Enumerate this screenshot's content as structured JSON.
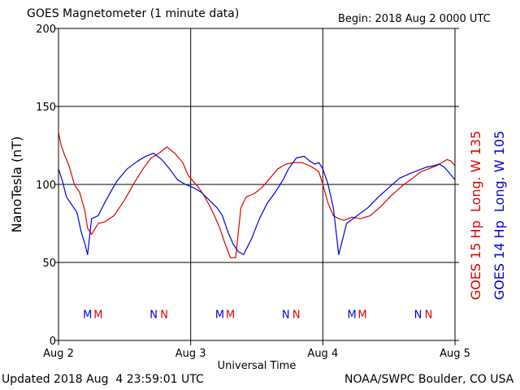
{
  "header": {
    "title": "GOES Magnetometer (1 minute data)",
    "begin": "Begin:  2018 Aug 2 0000 UTC"
  },
  "footer": {
    "updated": "Updated 2018 Aug  4 23:59:01 UTC",
    "credit": "NOAA/SWPC Boulder, CO USA"
  },
  "colors": {
    "goes15": "#dd0000",
    "goes14": "#0000dd"
  },
  "chart_data": {
    "type": "line",
    "xlabel": "Universal Time",
    "ylabel": "NanoTesla (nT)",
    "ylim": [
      0,
      200
    ],
    "xlim": [
      0,
      3
    ],
    "y_ticks": [
      0,
      50,
      100,
      150,
      200
    ],
    "x_ticks": [
      {
        "value": 0,
        "label": "Aug 2"
      },
      {
        "value": 1,
        "label": "Aug 3"
      },
      {
        "value": 2,
        "label": "Aug 4"
      },
      {
        "value": 3,
        "label": "Aug 5"
      }
    ],
    "grid": true,
    "legend_position": "right",
    "series": [
      {
        "name": "GOES 15 Hp  Long. W 135",
        "color": "#dd0000",
        "x": [
          0,
          0.02,
          0.05,
          0.08,
          0.12,
          0.16,
          0.2,
          0.22,
          0.25,
          0.3,
          0.35,
          0.42,
          0.5,
          0.58,
          0.64,
          0.7,
          0.76,
          0.82,
          0.88,
          0.94,
          0.98,
          1.02,
          1.06,
          1.1,
          1.14,
          1.18,
          1.22,
          1.26,
          1.3,
          1.34,
          1.38,
          1.42,
          1.48,
          1.54,
          1.6,
          1.66,
          1.72,
          1.78,
          1.84,
          1.9,
          1.94,
          1.97,
          2.0,
          2.04,
          2.08,
          2.12,
          2.16,
          2.22,
          2.28,
          2.36,
          2.44,
          2.52,
          2.6,
          2.68,
          2.74,
          2.8,
          2.86,
          2.9,
          2.94,
          2.97,
          3.0
        ],
        "y": [
          133,
          125,
          118,
          112,
          100,
          95,
          83,
          72,
          68,
          75,
          76,
          80,
          90,
          102,
          110,
          117,
          120,
          124,
          120,
          114,
          106,
          102,
          98,
          93,
          87,
          80,
          72,
          62,
          53,
          53,
          85,
          92,
          94,
          98,
          104,
          110,
          113,
          114,
          114,
          112,
          110,
          108,
          100,
          88,
          80,
          78,
          77,
          79,
          78,
          80,
          86,
          93,
          99,
          104,
          108,
          110,
          112,
          114,
          116,
          115,
          112
        ]
      },
      {
        "name": "GOES 14 Hp  Long. W 105",
        "color": "#0000dd",
        "x": [
          0,
          0.03,
          0.06,
          0.1,
          0.14,
          0.17,
          0.2,
          0.22,
          0.25,
          0.3,
          0.36,
          0.44,
          0.52,
          0.6,
          0.66,
          0.72,
          0.78,
          0.84,
          0.9,
          0.96,
          1.02,
          1.08,
          1.14,
          1.2,
          1.24,
          1.28,
          1.32,
          1.36,
          1.4,
          1.46,
          1.52,
          1.58,
          1.64,
          1.7,
          1.74,
          1.8,
          1.86,
          1.9,
          1.94,
          1.97,
          2.0,
          2.04,
          2.08,
          2.12,
          2.18,
          2.26,
          2.34,
          2.42,
          2.5,
          2.58,
          2.66,
          2.72,
          2.78,
          2.84,
          2.88,
          2.92,
          2.95,
          3.0
        ],
        "y": [
          110,
          102,
          92,
          87,
          82,
          70,
          62,
          55,
          78,
          80,
          90,
          102,
          110,
          115,
          118,
          120,
          116,
          110,
          103,
          100,
          98,
          95,
          90,
          85,
          80,
          70,
          62,
          57,
          55,
          65,
          78,
          88,
          95,
          103,
          110,
          117,
          118,
          115,
          113,
          114,
          110,
          100,
          85,
          55,
          75,
          80,
          85,
          92,
          98,
          104,
          107,
          109,
          111,
          112,
          113,
          111,
          108,
          103
        ]
      }
    ],
    "markers": [
      {
        "x": 0.22,
        "label": "M",
        "color": "#0000dd"
      },
      {
        "x": 0.3,
        "label": "M",
        "color": "#dd0000"
      },
      {
        "x": 0.72,
        "label": "N",
        "color": "#0000dd"
      },
      {
        "x": 0.8,
        "label": "N",
        "color": "#dd0000"
      },
      {
        "x": 1.22,
        "label": "M",
        "color": "#0000dd"
      },
      {
        "x": 1.3,
        "label": "M",
        "color": "#dd0000"
      },
      {
        "x": 1.72,
        "label": "N",
        "color": "#0000dd"
      },
      {
        "x": 1.8,
        "label": "N",
        "color": "#dd0000"
      },
      {
        "x": 2.22,
        "label": "M",
        "color": "#0000dd"
      },
      {
        "x": 2.3,
        "label": "M",
        "color": "#dd0000"
      },
      {
        "x": 2.72,
        "label": "N",
        "color": "#0000dd"
      },
      {
        "x": 2.8,
        "label": "N",
        "color": "#dd0000"
      }
    ],
    "marker_y": 17
  }
}
